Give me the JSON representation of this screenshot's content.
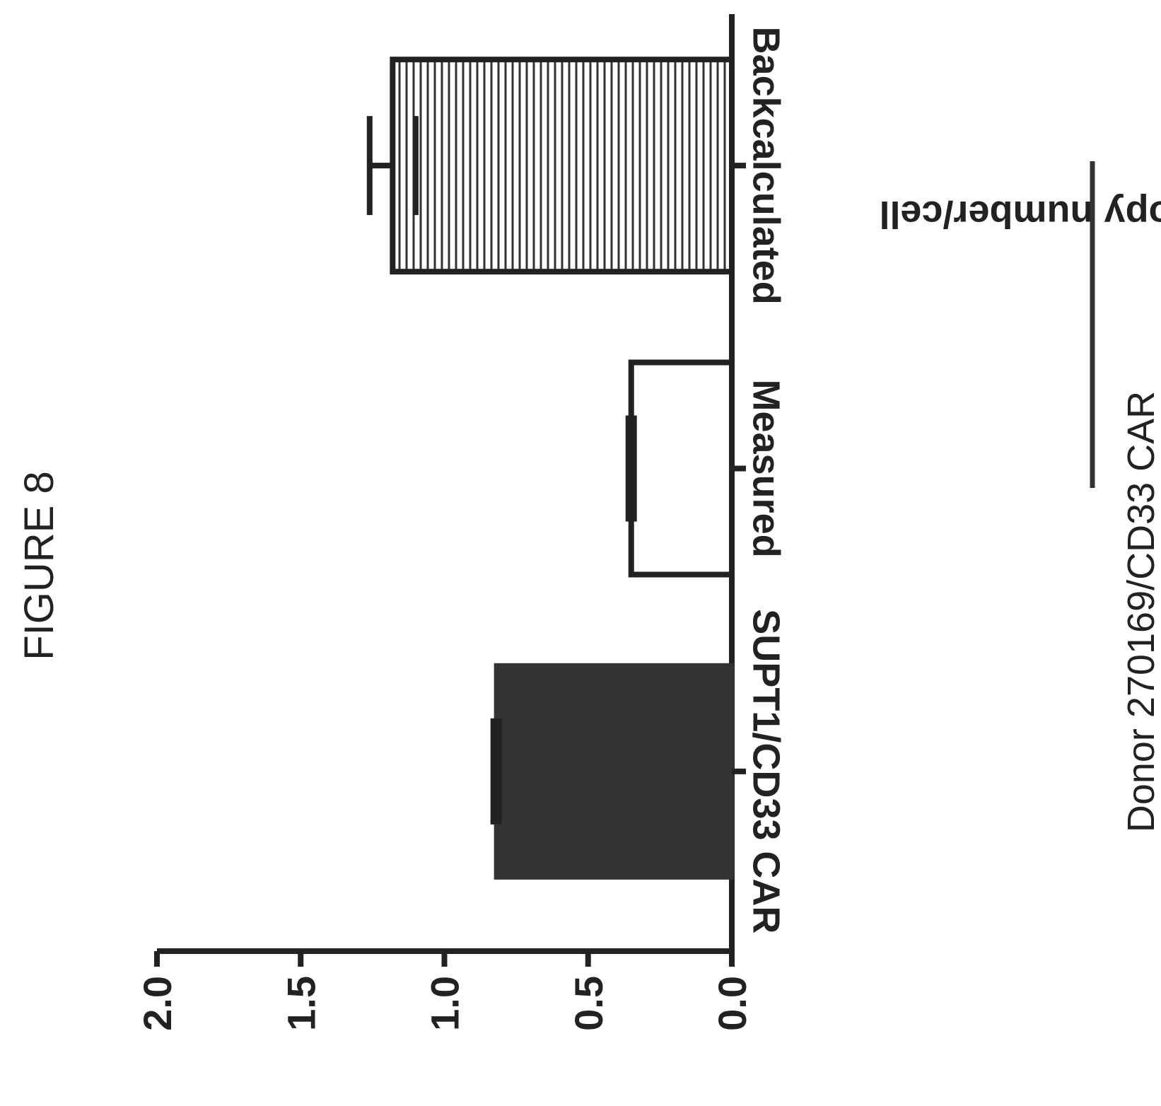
{
  "figure_label": "FIGURE 8",
  "colors": {
    "ink": "#222222",
    "solid_fill": "#333333",
    "paper": "#ffffff"
  },
  "chart_data": {
    "type": "bar",
    "orientation": "figure rotated 90 degrees; value axis runs right-to-left",
    "categories": [
      "SUPT1/CD33 CAR",
      "Measured",
      "Backcalculated"
    ],
    "series": [
      {
        "values": [
          0.82,
          0.35,
          1.18
        ],
        "error": [
          0.0,
          0.0,
          0.08
        ]
      }
    ],
    "bar_fills": [
      "solid",
      "open",
      "vertical-hatch"
    ],
    "ylabel": "Copy number/cell",
    "ylim": [
      0.0,
      2.0
    ],
    "yticks": [
      "0.0",
      "0.5",
      "1.0",
      "1.5",
      "2.0"
    ],
    "group_label": "Donor 270169/CD33 CAR",
    "grid": false,
    "legend": "none"
  }
}
